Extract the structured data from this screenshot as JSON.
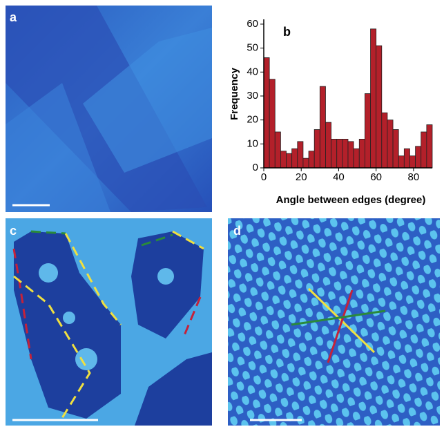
{
  "panels": [
    "a",
    "c",
    "d"
  ],
  "chart_data": {
    "type": "histogram",
    "title": "b",
    "x_label": "Angle between edges (degree)",
    "y_label": "Frequency",
    "bins": [
      0,
      3,
      6,
      9,
      12,
      15,
      18,
      21,
      24,
      27,
      30,
      33,
      36,
      39,
      42,
      45,
      48,
      51,
      54,
      57,
      60,
      63,
      66,
      69,
      72,
      75,
      78,
      81,
      84,
      87,
      90
    ],
    "values": [
      46,
      37,
      15,
      7,
      6,
      8,
      11,
      4,
      7,
      16,
      34,
      19,
      12,
      12,
      12,
      11,
      8,
      12,
      31,
      58,
      51,
      23,
      20,
      16,
      5,
      8,
      5,
      9,
      15,
      18
    ],
    "color": "#b3202a",
    "xlim": [
      0,
      90
    ],
    "xticks": [
      0,
      20,
      40,
      60,
      80
    ],
    "ylim": [
      0,
      62
    ],
    "yticks": [
      0,
      10,
      20,
      30,
      40,
      50,
      60
    ]
  }
}
